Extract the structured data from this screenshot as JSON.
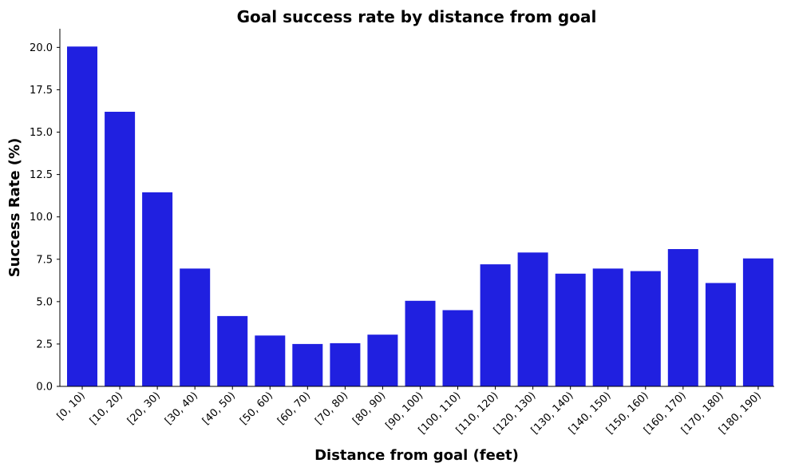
{
  "chart_data": {
    "type": "bar",
    "title": "Goal success rate by distance from goal",
    "xlabel": "Distance from goal (feet)",
    "ylabel": "Success Rate (%)",
    "categories": [
      "[0, 10)",
      "[10, 20)",
      "[20, 30)",
      "[30, 40)",
      "[40, 50)",
      "[50, 60)",
      "[60, 70)",
      "[70, 80)",
      "[80, 90)",
      "[90, 100)",
      "[100, 110)",
      "[110, 120)",
      "[120, 130)",
      "[130, 140)",
      "[140, 150)",
      "[150, 160)",
      "[160, 170)",
      "[170, 180)",
      "[180, 190)"
    ],
    "values": [
      20.05,
      16.2,
      11.45,
      6.95,
      4.15,
      3.0,
      2.5,
      2.55,
      3.05,
      5.05,
      4.5,
      7.2,
      7.9,
      6.65,
      6.95,
      6.8,
      8.1,
      6.1,
      7.55
    ],
    "yticks": [
      "0.0",
      "2.5",
      "5.0",
      "7.5",
      "10.0",
      "12.5",
      "15.0",
      "17.5",
      "20.0"
    ],
    "ylim": [
      0,
      21.1
    ],
    "bar_color": "#2020e0",
    "grid": false,
    "legend": "none"
  }
}
